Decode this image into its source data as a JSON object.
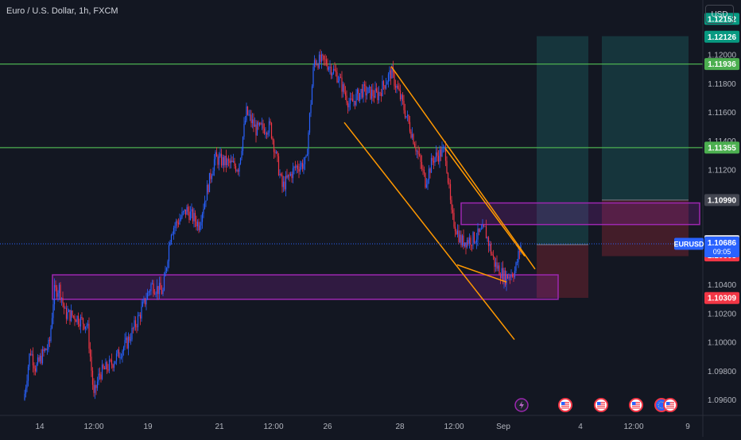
{
  "header": {
    "title": "Euro / U.S. Dollar, 1h, FXCM",
    "currency_button": "USD"
  },
  "colors": {
    "background": "#131722",
    "up_candle": "#2962ff",
    "down_candle": "#f23645",
    "green_level": "#4caf50",
    "trendline": "#ff9800",
    "zone_border": "#9c27b0",
    "zone_fill": "rgba(156,39,176,0.22)",
    "target_fill": "rgba(38,166,154,0.22)",
    "stop_fill": "rgba(242,54,69,0.22)",
    "axis_text": "#b2b5be",
    "current_price_label": "#2962ff"
  },
  "chart_data": {
    "type": "candlestick",
    "symbol": "EURUSD",
    "timeframe": "1h",
    "ylim": [
      1.0957,
      1.1226
    ],
    "y_ticks": [
      "1.09600",
      "1.09800",
      "1.10000",
      "1.10200",
      "1.10400",
      "1.11200",
      "1.11400",
      "1.11600",
      "1.11800",
      "1.12000"
    ],
    "x_ticks": [
      "14",
      "12:00",
      "19",
      "21",
      "12:00",
      "26",
      "28",
      "12:00",
      "Sep",
      "4",
      "12:00",
      "9"
    ],
    "price_close_path": [
      {
        "t": 30,
        "p": 1.096
      },
      {
        "t": 38,
        "p": 1.0995
      },
      {
        "t": 45,
        "p": 1.0982
      },
      {
        "t": 55,
        "p": 1.0993
      },
      {
        "t": 62,
        "p": 1.0998
      },
      {
        "t": 68,
        "p": 1.1035
      },
      {
        "t": 75,
        "p": 1.1038
      },
      {
        "t": 82,
        "p": 1.102
      },
      {
        "t": 95,
        "p": 1.1018
      },
      {
        "t": 110,
        "p": 1.1012
      },
      {
        "t": 118,
        "p": 1.0962
      },
      {
        "t": 125,
        "p": 1.0978
      },
      {
        "t": 140,
        "p": 1.0985
      },
      {
        "t": 160,
        "p": 1.1
      },
      {
        "t": 175,
        "p": 1.1018
      },
      {
        "t": 190,
        "p": 1.104
      },
      {
        "t": 205,
        "p": 1.1035
      },
      {
        "t": 215,
        "p": 1.1078
      },
      {
        "t": 235,
        "p": 1.1092
      },
      {
        "t": 250,
        "p": 1.1082
      },
      {
        "t": 258,
        "p": 1.11
      },
      {
        "t": 270,
        "p": 1.1128
      },
      {
        "t": 285,
        "p": 1.1125
      },
      {
        "t": 300,
        "p": 1.1122
      },
      {
        "t": 310,
        "p": 1.116
      },
      {
        "t": 322,
        "p": 1.1148
      },
      {
        "t": 340,
        "p": 1.115
      },
      {
        "t": 355,
        "p": 1.1108
      },
      {
        "t": 372,
        "p": 1.1122
      },
      {
        "t": 385,
        "p": 1.1125
      },
      {
        "t": 395,
        "p": 1.1196
      },
      {
        "t": 410,
        "p": 1.1195
      },
      {
        "t": 425,
        "p": 1.1185
      },
      {
        "t": 440,
        "p": 1.1165
      },
      {
        "t": 455,
        "p": 1.1175
      },
      {
        "t": 475,
        "p": 1.1172
      },
      {
        "t": 492,
        "p": 1.1188
      },
      {
        "t": 505,
        "p": 1.1168
      },
      {
        "t": 520,
        "p": 1.1142
      },
      {
        "t": 535,
        "p": 1.1112
      },
      {
        "t": 545,
        "p": 1.1128
      },
      {
        "t": 560,
        "p": 1.1134
      },
      {
        "t": 568,
        "p": 1.1088
      },
      {
        "t": 580,
        "p": 1.107
      },
      {
        "t": 595,
        "p": 1.1072
      },
      {
        "t": 610,
        "p": 1.1078
      },
      {
        "t": 622,
        "p": 1.1055
      },
      {
        "t": 635,
        "p": 1.1045
      },
      {
        "t": 648,
        "p": 1.105
      },
      {
        "t": 655,
        "p": 1.1068
      }
    ],
    "levels": [
      {
        "name": "resistance-top",
        "price": 1.11936,
        "label": "1.11936"
      },
      {
        "name": "resistance-mid",
        "price": 1.11355,
        "label": "1.11355"
      }
    ],
    "zones": [
      {
        "name": "demand-zone",
        "top": 1.1047,
        "bottom": 1.103,
        "t_start": 66,
        "t_end": 702
      },
      {
        "name": "supply-zone",
        "top": 1.1097,
        "bottom": 1.1082,
        "t_start": 580,
        "t_end": 880
      }
    ],
    "trendlines": [
      {
        "name": "channel-upper",
        "t1": 492,
        "p1": 1.1192,
        "t2": 673,
        "p2": 1.1051
      },
      {
        "name": "channel-lower",
        "t1": 433,
        "p1": 1.1153,
        "t2": 647,
        "p2": 1.1002
      },
      {
        "name": "wedge-upper",
        "t1": 560,
        "p1": 1.1135,
        "t2": 660,
        "p2": 1.106
      },
      {
        "name": "wedge-lower",
        "t1": 575,
        "p1": 1.1054,
        "t2": 637,
        "p2": 1.1042
      }
    ],
    "positions": [
      {
        "name": "position-1",
        "t_start": 675,
        "t_end": 740,
        "target": 1.1213,
        "entry": 1.1068,
        "stop": 1.1031
      },
      {
        "name": "position-2",
        "t_start": 757,
        "t_end": 866,
        "target": 1.1213,
        "entry": 1.1099,
        "stop": 1.106
      }
    ],
    "price_labels": [
      {
        "text": "1.12152",
        "price": 1.1225,
        "bg": "#089981",
        "fg": "#ffffff"
      },
      {
        "text": "1.12126",
        "price": 1.12126,
        "bg": "#089981",
        "fg": "#ffffff"
      },
      {
        "text": "1.11936",
        "price": 1.11936,
        "bg": "#4caf50",
        "fg": "#ffffff"
      },
      {
        "text": "1.11355",
        "price": 1.11355,
        "bg": "#4caf50",
        "fg": "#ffffff"
      },
      {
        "text": "1.10990",
        "price": 1.1099,
        "bg": "#434651",
        "fg": "#ffffff"
      },
      {
        "text": "1.10705",
        "price": 1.10705,
        "bg": "#d1d4dc",
        "fg": "#131722"
      },
      {
        "text": "1.10605",
        "price": 1.10605,
        "bg": "#f23645",
        "fg": "#ffffff"
      },
      {
        "text": "1.10309",
        "price": 1.10309,
        "bg": "#f23645",
        "fg": "#ffffff"
      }
    ],
    "current_price": {
      "symbol": "EURUSD",
      "price": 1.10686,
      "label": "1.10686",
      "countdown": "09:05"
    }
  },
  "events": [
    {
      "name": "lightning-event-icon",
      "t": 656,
      "kind": "lightning"
    },
    {
      "name": "us-flag-event-icon",
      "t": 711,
      "kind": "flag-us"
    },
    {
      "name": "us-flag-event-icon",
      "t": 756,
      "kind": "flag-us"
    },
    {
      "name": "us-flag-event-icon",
      "t": 800,
      "kind": "flag-us"
    },
    {
      "name": "eu-flag-event-icon",
      "t": 832,
      "kind": "flag-eu"
    },
    {
      "name": "us-flag-event-icon",
      "t": 843,
      "kind": "flag-us"
    }
  ]
}
